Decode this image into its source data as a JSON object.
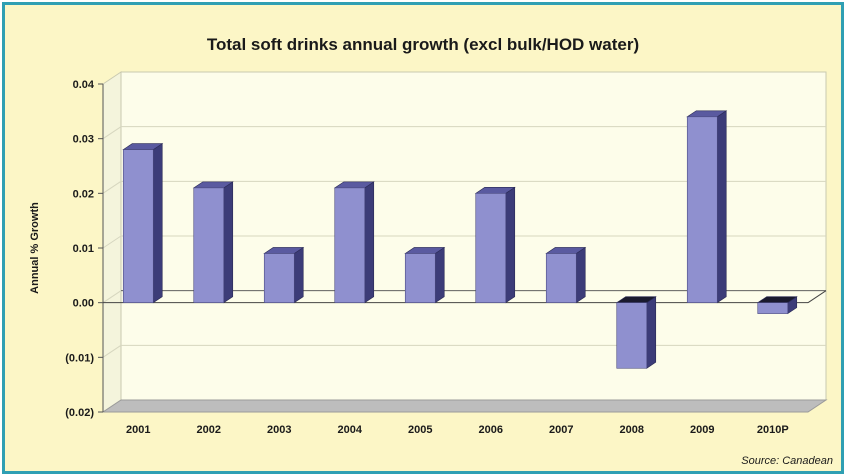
{
  "chart_data": {
    "type": "bar",
    "title": "Total soft drinks annual growth (excl bulk/HOD water)",
    "ylabel": "Annual % Growth",
    "xlabel": "",
    "categories": [
      "2001",
      "2002",
      "2003",
      "2004",
      "2005",
      "2006",
      "2007",
      "2008",
      "2009",
      "2010P"
    ],
    "values": [
      0.028,
      0.021,
      0.009,
      0.021,
      0.009,
      0.02,
      0.009,
      -0.012,
      0.034,
      -0.002
    ],
    "ylim": [
      -0.02,
      0.04
    ],
    "yticks": [
      "(0.02)",
      "(0.01)",
      "0.00",
      "0.01",
      "0.02",
      "0.03",
      "0.04"
    ],
    "grid": true,
    "style": "3d-column",
    "colors": {
      "bar_front": "#8f90cf",
      "bar_side": "#3c3c78",
      "bar_top": "#5a5aa0",
      "plot_bg": "#fdfdea",
      "frame_bg": "#fcf6c6",
      "frame_border": "#2f9fb3"
    }
  },
  "source": "Source: Canadean"
}
